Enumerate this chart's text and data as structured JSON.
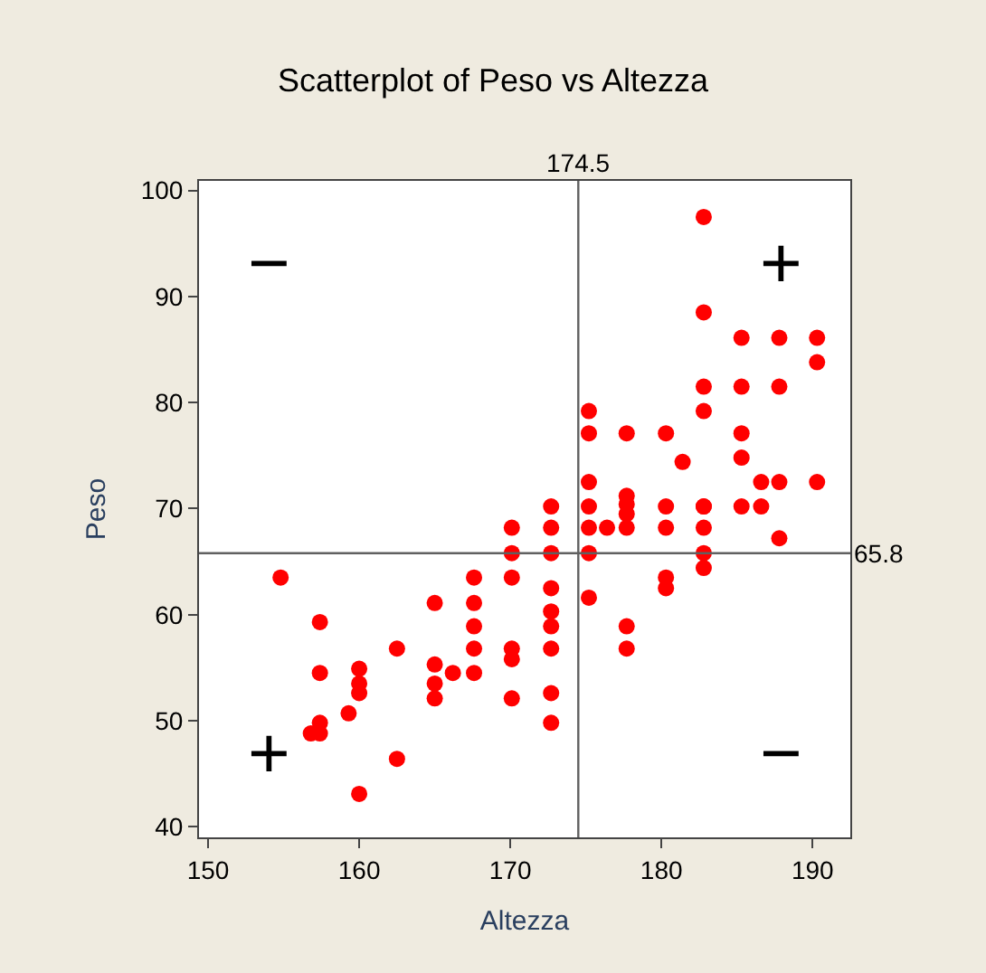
{
  "chart_data": {
    "type": "scatter",
    "title": "Scatterplot of Peso vs Altezza",
    "xlabel": "Altezza",
    "ylabel": "Peso",
    "x": [
      154.8,
      157.4,
      157.4,
      156.8,
      157.4,
      157.4,
      159.3,
      160,
      160,
      160,
      160,
      162.5,
      162.5,
      165,
      165,
      165,
      165,
      166.2,
      167.6,
      167.6,
      167.6,
      167.6,
      167.6,
      170.1,
      170.1,
      170.1,
      170.1,
      170.1,
      170.1,
      172.7,
      172.7,
      172.7,
      172.7,
      172.7,
      172.7,
      172.7,
      172.7,
      172.7,
      175.2,
      175.2,
      176.4,
      175.2,
      175.2,
      175.2,
      175.2,
      175.2,
      177.7,
      177.7,
      177.7,
      177.7,
      177.7,
      177.7,
      177.7,
      180.3,
      180.3,
      180.3,
      180.3,
      180.3,
      181.4,
      182.8,
      182.8,
      182.8,
      182.8,
      182.8,
      182.8,
      182.8,
      182.8,
      182.8,
      185.3,
      185.3,
      185.3,
      185.3,
      185.3,
      186.6,
      186.6,
      187.8,
      187.8,
      187.8,
      187.8,
      190.3,
      190.3,
      190.3
    ],
    "values": [
      63.5,
      59.3,
      54.5,
      48.8,
      49.8,
      48.8,
      50.7,
      54.9,
      53.5,
      52.6,
      43.1,
      56.8,
      46.4,
      61.1,
      55.3,
      53.5,
      52.1,
      54.5,
      63.5,
      61.1,
      58.9,
      56.8,
      54.5,
      68.2,
      65.8,
      63.5,
      56.8,
      55.8,
      52.1,
      70.2,
      68.2,
      65.8,
      62.5,
      60.3,
      58.9,
      56.8,
      52.6,
      49.8,
      70.2,
      68.2,
      68.2,
      65.8,
      61.6,
      79.2,
      77.1,
      72.5,
      71.2,
      70.4,
      69.5,
      68.2,
      58.9,
      56.8,
      77.1,
      70.2,
      68.2,
      63.5,
      62.5,
      77.1,
      74.4,
      70.2,
      68.2,
      65.8,
      64.4,
      97.5,
      88.5,
      81.5,
      79.2,
      70.2,
      70.2,
      86.1,
      81.5,
      77.1,
      74.8,
      70.2,
      72.5,
      67.2,
      86.1,
      81.5,
      72.5,
      86.1,
      83.8,
      72.5
    ],
    "color": "#ff0000",
    "marker": "circle",
    "xlim": [
      149.4,
      192.5
    ],
    "ylim": [
      39,
      100.9
    ],
    "xticks": [
      150,
      160,
      170,
      180,
      190
    ],
    "yticks": [
      40,
      50,
      60,
      70,
      80,
      90,
      100
    ],
    "ref_lines": [
      {
        "axis": "x",
        "value": 174.5,
        "label": "174.5",
        "color": "#606060"
      },
      {
        "axis": "y",
        "value": 65.8,
        "label": "65.8",
        "color": "#606060"
      }
    ],
    "annotations": [
      "−",
      "+",
      "+",
      "−"
    ],
    "grid": false,
    "legend": false
  }
}
